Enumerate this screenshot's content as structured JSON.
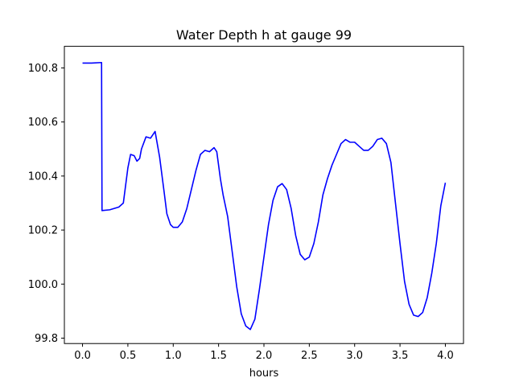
{
  "chart_data": {
    "type": "line",
    "title": "Water Depth h at gauge 99",
    "xlabel": "hours",
    "ylabel": "",
    "xlim": [
      -0.2,
      4.2
    ],
    "ylim": [
      99.78,
      100.88
    ],
    "xticks": [
      0.0,
      0.5,
      1.0,
      1.5,
      2.0,
      2.5,
      3.0,
      3.5,
      4.0
    ],
    "xtick_labels": [
      "0.0",
      "0.5",
      "1.0",
      "1.5",
      "2.0",
      "2.5",
      "3.0",
      "3.5",
      "4.0"
    ],
    "yticks": [
      99.8,
      100.0,
      100.2,
      100.4,
      100.6,
      100.8
    ],
    "ytick_labels": [
      "99.8",
      "100.0",
      "100.2",
      "100.4",
      "100.6",
      "100.8"
    ],
    "grid": false,
    "legend": "none",
    "series": [
      {
        "name": "",
        "color": "#0000ff",
        "points": [
          [
            0.0,
            100.818
          ],
          [
            0.1,
            100.818
          ],
          [
            0.21,
            100.82
          ],
          [
            0.215,
            100.272
          ],
          [
            0.3,
            100.275
          ],
          [
            0.4,
            100.285
          ],
          [
            0.45,
            100.3
          ],
          [
            0.5,
            100.43
          ],
          [
            0.53,
            100.48
          ],
          [
            0.57,
            100.475
          ],
          [
            0.6,
            100.455
          ],
          [
            0.63,
            100.465
          ],
          [
            0.65,
            100.5
          ],
          [
            0.7,
            100.545
          ],
          [
            0.75,
            100.54
          ],
          [
            0.8,
            100.565
          ],
          [
            0.85,
            100.47
          ],
          [
            0.9,
            100.34
          ],
          [
            0.93,
            100.26
          ],
          [
            0.97,
            100.22
          ],
          [
            1.0,
            100.21
          ],
          [
            1.05,
            100.21
          ],
          [
            1.1,
            100.23
          ],
          [
            1.15,
            100.28
          ],
          [
            1.2,
            100.35
          ],
          [
            1.25,
            100.42
          ],
          [
            1.3,
            100.48
          ],
          [
            1.35,
            100.495
          ],
          [
            1.4,
            100.49
          ],
          [
            1.45,
            100.505
          ],
          [
            1.48,
            100.49
          ],
          [
            1.52,
            100.39
          ],
          [
            1.55,
            100.33
          ],
          [
            1.6,
            100.25
          ],
          [
            1.65,
            100.12
          ],
          [
            1.7,
            99.99
          ],
          [
            1.75,
            99.89
          ],
          [
            1.8,
            99.845
          ],
          [
            1.85,
            99.832
          ],
          [
            1.9,
            99.87
          ],
          [
            1.95,
            99.98
          ],
          [
            2.0,
            100.1
          ],
          [
            2.05,
            100.22
          ],
          [
            2.1,
            100.31
          ],
          [
            2.15,
            100.36
          ],
          [
            2.2,
            100.372
          ],
          [
            2.25,
            100.35
          ],
          [
            2.3,
            100.28
          ],
          [
            2.35,
            100.18
          ],
          [
            2.4,
            100.11
          ],
          [
            2.45,
            100.09
          ],
          [
            2.5,
            100.1
          ],
          [
            2.55,
            100.15
          ],
          [
            2.6,
            100.23
          ],
          [
            2.65,
            100.33
          ],
          [
            2.7,
            100.39
          ],
          [
            2.75,
            100.44
          ],
          [
            2.8,
            100.48
          ],
          [
            2.85,
            100.52
          ],
          [
            2.9,
            100.535
          ],
          [
            2.95,
            100.525
          ],
          [
            3.0,
            100.525
          ],
          [
            3.05,
            100.51
          ],
          [
            3.1,
            100.495
          ],
          [
            3.15,
            100.495
          ],
          [
            3.2,
            100.51
          ],
          [
            3.25,
            100.535
          ],
          [
            3.3,
            100.54
          ],
          [
            3.35,
            100.52
          ],
          [
            3.4,
            100.45
          ],
          [
            3.45,
            100.3
          ],
          [
            3.5,
            100.15
          ],
          [
            3.55,
            100.01
          ],
          [
            3.6,
            99.925
          ],
          [
            3.65,
            99.885
          ],
          [
            3.7,
            99.88
          ],
          [
            3.75,
            99.895
          ],
          [
            3.8,
            99.95
          ],
          [
            3.85,
            100.04
          ],
          [
            3.9,
            100.15
          ],
          [
            3.95,
            100.29
          ],
          [
            4.0,
            100.375
          ]
        ]
      }
    ]
  }
}
